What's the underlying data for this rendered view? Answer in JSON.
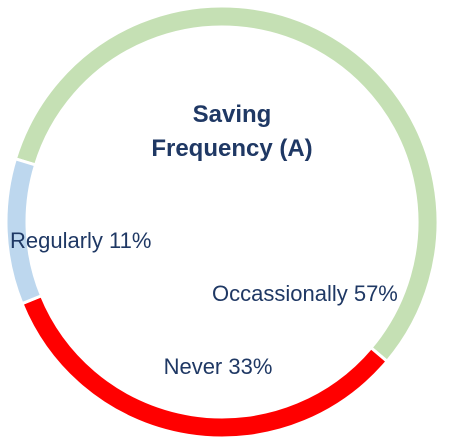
{
  "chart_data": {
    "type": "donut",
    "title": "Saving Frequency (A)",
    "values": [
      57,
      33,
      11
    ],
    "value_labels": [
      "Occassionally 57%",
      "Never 33%",
      "Regularly 11%"
    ],
    "colors": [
      "#c5e0b4",
      "#ff0000",
      "#bdd7ee"
    ]
  }
}
